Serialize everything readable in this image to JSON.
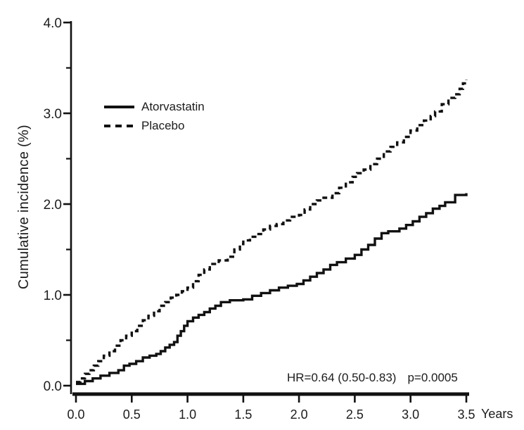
{
  "figure": {
    "background": "#ffffff",
    "ink_color": "#111111",
    "text_color": "#1c1c1c"
  },
  "chart_data": {
    "type": "line",
    "subtype": "kaplan-meier-step",
    "title": "",
    "xlabel": "Years",
    "ylabel": "Cumulative incidence (%)",
    "xlim": [
      0,
      3.5
    ],
    "ylim": [
      0,
      4.0
    ],
    "grid": "off",
    "legend_position": "inside-upper-left",
    "x_ticks": {
      "values": [
        0,
        0.5,
        1.0,
        1.5,
        2.0,
        2.5,
        3.0,
        3.5
      ],
      "labels": [
        "0.0",
        "0.5",
        "1.0",
        "1.5",
        "2.0",
        "2.5",
        "3.0",
        "3.5"
      ]
    },
    "y_ticks": {
      "values": [
        0,
        1.0,
        2.0,
        3.0,
        4.0
      ],
      "labels": [
        "0.0",
        "1.0",
        "2.0",
        "3.0",
        "4.0"
      ]
    },
    "y_minor_ticks": [
      0.5,
      1.5,
      2.5,
      3.5
    ],
    "annotation": {
      "hr_text": "HR=0.64 (0.50-0.83)",
      "p_text": "p=0.0005"
    },
    "series": [
      {
        "name": "Atorvastatin",
        "line_style": "solid",
        "color": "#111111",
        "points": [
          [
            0.0,
            0.02
          ],
          [
            0.08,
            0.05
          ],
          [
            0.15,
            0.08
          ],
          [
            0.22,
            0.11
          ],
          [
            0.3,
            0.14
          ],
          [
            0.38,
            0.17
          ],
          [
            0.43,
            0.22
          ],
          [
            0.48,
            0.24
          ],
          [
            0.54,
            0.27
          ],
          [
            0.6,
            0.31
          ],
          [
            0.66,
            0.33
          ],
          [
            0.72,
            0.35
          ],
          [
            0.76,
            0.38
          ],
          [
            0.8,
            0.42
          ],
          [
            0.84,
            0.45
          ],
          [
            0.88,
            0.48
          ],
          [
            0.91,
            0.55
          ],
          [
            0.94,
            0.6
          ],
          [
            0.97,
            0.66
          ],
          [
            1.0,
            0.71
          ],
          [
            1.05,
            0.75
          ],
          [
            1.1,
            0.78
          ],
          [
            1.15,
            0.81
          ],
          [
            1.2,
            0.85
          ],
          [
            1.25,
            0.88
          ],
          [
            1.3,
            0.92
          ],
          [
            1.38,
            0.94
          ],
          [
            1.5,
            0.95
          ],
          [
            1.58,
            0.99
          ],
          [
            1.66,
            1.02
          ],
          [
            1.74,
            1.05
          ],
          [
            1.82,
            1.08
          ],
          [
            1.9,
            1.1
          ],
          [
            1.98,
            1.12
          ],
          [
            2.04,
            1.16
          ],
          [
            2.1,
            1.2
          ],
          [
            2.16,
            1.24
          ],
          [
            2.22,
            1.28
          ],
          [
            2.28,
            1.33
          ],
          [
            2.34,
            1.36
          ],
          [
            2.42,
            1.4
          ],
          [
            2.5,
            1.44
          ],
          [
            2.56,
            1.5
          ],
          [
            2.62,
            1.55
          ],
          [
            2.68,
            1.62
          ],
          [
            2.74,
            1.68
          ],
          [
            2.8,
            1.7
          ],
          [
            2.9,
            1.73
          ],
          [
            2.96,
            1.77
          ],
          [
            3.02,
            1.81
          ],
          [
            3.08,
            1.86
          ],
          [
            3.14,
            1.9
          ],
          [
            3.2,
            1.95
          ],
          [
            3.26,
            1.98
          ],
          [
            3.31,
            2.02
          ],
          [
            3.4,
            2.1
          ],
          [
            3.47,
            2.1
          ],
          [
            3.5,
            2.12
          ]
        ]
      },
      {
        "name": "Placebo",
        "line_style": "dashed",
        "color": "#111111",
        "points": [
          [
            0.0,
            0.04
          ],
          [
            0.04,
            0.08
          ],
          [
            0.08,
            0.13
          ],
          [
            0.12,
            0.17
          ],
          [
            0.16,
            0.22
          ],
          [
            0.2,
            0.27
          ],
          [
            0.25,
            0.33
          ],
          [
            0.3,
            0.38
          ],
          [
            0.35,
            0.44
          ],
          [
            0.4,
            0.5
          ],
          [
            0.45,
            0.55
          ],
          [
            0.5,
            0.6
          ],
          [
            0.55,
            0.66
          ],
          [
            0.6,
            0.72
          ],
          [
            0.65,
            0.77
          ],
          [
            0.7,
            0.82
          ],
          [
            0.75,
            0.88
          ],
          [
            0.8,
            0.92
          ],
          [
            0.85,
            0.97
          ],
          [
            0.9,
            1.0
          ],
          [
            0.95,
            1.04
          ],
          [
            1.0,
            1.08
          ],
          [
            1.05,
            1.15
          ],
          [
            1.1,
            1.22
          ],
          [
            1.15,
            1.28
          ],
          [
            1.2,
            1.34
          ],
          [
            1.28,
            1.38
          ],
          [
            1.36,
            1.42
          ],
          [
            1.42,
            1.5
          ],
          [
            1.47,
            1.56
          ],
          [
            1.5,
            1.6
          ],
          [
            1.56,
            1.64
          ],
          [
            1.62,
            1.67
          ],
          [
            1.68,
            1.72
          ],
          [
            1.74,
            1.76
          ],
          [
            1.8,
            1.78
          ],
          [
            1.86,
            1.82
          ],
          [
            1.92,
            1.86
          ],
          [
            2.0,
            1.88
          ],
          [
            2.05,
            1.94
          ],
          [
            2.1,
            2.0
          ],
          [
            2.16,
            2.04
          ],
          [
            2.22,
            2.07
          ],
          [
            2.3,
            2.12
          ],
          [
            2.36,
            2.18
          ],
          [
            2.42,
            2.24
          ],
          [
            2.48,
            2.3
          ],
          [
            2.52,
            2.34
          ],
          [
            2.58,
            2.38
          ],
          [
            2.64,
            2.44
          ],
          [
            2.7,
            2.5
          ],
          [
            2.76,
            2.58
          ],
          [
            2.82,
            2.63
          ],
          [
            2.88,
            2.68
          ],
          [
            2.94,
            2.74
          ],
          [
            3.0,
            2.81
          ],
          [
            3.06,
            2.87
          ],
          [
            3.12,
            2.92
          ],
          [
            3.18,
            2.97
          ],
          [
            3.22,
            3.02
          ],
          [
            3.28,
            3.1
          ],
          [
            3.34,
            3.17
          ],
          [
            3.4,
            3.21
          ],
          [
            3.44,
            3.27
          ],
          [
            3.47,
            3.33
          ],
          [
            3.5,
            3.37
          ]
        ]
      }
    ]
  }
}
